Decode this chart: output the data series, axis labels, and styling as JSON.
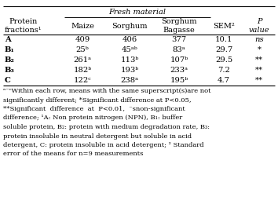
{
  "title_main": "Fresh material",
  "col_headers_row1": [
    "",
    "Fresh material",
    "",
    "",
    "",
    ""
  ],
  "col_headers_row2": [
    "Protein\nfractions¹",
    "Maize",
    "Sorghum",
    "Sorghum\nBagasse",
    "SEM²",
    "P\nvalue"
  ],
  "rows": [
    [
      "A",
      "409",
      "406",
      "377",
      "10.1",
      "ns"
    ],
    [
      "B₁",
      "25ᵇ",
      "45ᵃᵇ",
      "83ᵃ",
      "29.7",
      "*"
    ],
    [
      "B₂",
      "261ᵃ",
      "113ᵇ",
      "107ᵇ",
      "29.5",
      "**"
    ],
    [
      "B₃",
      "182ᵇ",
      "193ᵇ",
      "233ᵃ",
      "7.2",
      "**"
    ],
    [
      "C",
      "122ᶜ",
      "238ᵃ",
      "195ᵇ",
      "4.7",
      "**"
    ]
  ],
  "footnote_lines": [
    "ᵃ⁻ᶜWithin each row, means with the same superscript(s)are not",
    "significantly different; *Significant difference at P<0.05,",
    "**Significant  difference  at  P<0.01,  ⁻snon-significant",
    "difference; ¹A: Non protein nitrogen (NPN), B₁: buffer",
    "soluble protein, B₂: protein with medium degradation rate, B₃:",
    "protein insoluble in neutral detergent but soluble in acid",
    "detergent, C: protein insoluble in acid detergent; ² Standard",
    "error of the means for n=9 measurements"
  ],
  "bg_color": "#ffffff",
  "text_color": "#000000",
  "border_color": "#000000"
}
